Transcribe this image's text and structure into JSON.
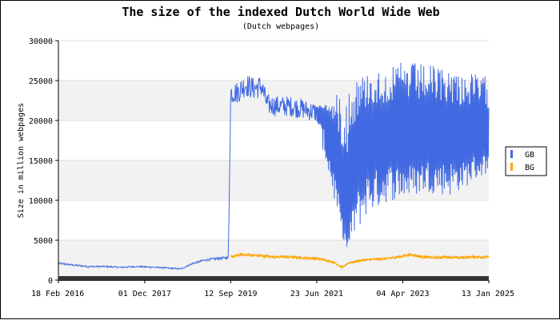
{
  "chart_data": {
    "type": "line",
    "title": "The size of the indexed Dutch World Wide Web",
    "subtitle": "(Dutch webpages)",
    "xlabel": "",
    "ylabel": "Size in million webpages",
    "ylim": [
      0,
      30000
    ],
    "yticks": [
      "0",
      "5000",
      "10000",
      "15000",
      "20000",
      "25000",
      "30000"
    ],
    "xlim": [
      "2016-02-18",
      "2025-01-13"
    ],
    "xticks": [
      {
        "label": "18 Feb 2016",
        "date": "2016-02-18"
      },
      {
        "label": "01 Dec 2017",
        "date": "2017-12-01"
      },
      {
        "label": "12 Sep 2019",
        "date": "2019-09-12"
      },
      {
        "label": "23 Jun 2021",
        "date": "2021-06-23"
      },
      {
        "label": "04 Apr 2023",
        "date": "2023-04-04"
      },
      {
        "label": "13 Jan 2025",
        "date": "2025-01-13"
      }
    ],
    "grid": true,
    "legend_position": "right",
    "series": [
      {
        "name": "GB",
        "color": "#4169E1",
        "points": [
          [
            "2016-02-18",
            2100
          ],
          [
            "2016-06-01",
            1900
          ],
          [
            "2016-10-01",
            1700
          ],
          [
            "2017-02-01",
            1700
          ],
          [
            "2017-06-01",
            1600
          ],
          [
            "2017-10-01",
            1700
          ],
          [
            "2017-12-01",
            1650
          ],
          [
            "2018-03-01",
            1600
          ],
          [
            "2018-06-01",
            1500
          ],
          [
            "2018-09-01",
            1400
          ],
          [
            "2018-12-01",
            2100
          ],
          [
            "2019-03-01",
            2500
          ],
          [
            "2019-06-01",
            2700
          ],
          [
            "2019-08-25",
            2800
          ],
          [
            "2019-09-12",
            23500
          ],
          [
            "2019-11-01",
            23500
          ],
          [
            "2020-01-01",
            24500
          ],
          [
            "2020-03-01",
            24000
          ],
          [
            "2020-05-01",
            24300
          ],
          [
            "2020-06-15",
            22000
          ],
          [
            "2020-09-01",
            21800
          ],
          [
            "2020-12-01",
            21800
          ],
          [
            "2021-03-01",
            21500
          ],
          [
            "2021-05-01",
            21200
          ],
          [
            "2021-06-23",
            21000
          ],
          [
            "2021-09-01",
            21000
          ],
          [
            "2021-11-01",
            17000
          ],
          [
            "2022-01-01",
            9000
          ],
          [
            "2022-02-15",
            6000
          ],
          [
            "2022-04-01",
            14000
          ],
          [
            "2022-06-01",
            16000
          ],
          [
            "2022-08-01",
            18000
          ],
          [
            "2022-10-01",
            17000
          ],
          [
            "2022-12-01",
            18000
          ],
          [
            "2023-02-01",
            17500
          ],
          [
            "2023-04-04",
            18000
          ],
          [
            "2023-07-01",
            17000
          ],
          [
            "2023-10-01",
            18000
          ],
          [
            "2024-01-01",
            17500
          ],
          [
            "2024-04-01",
            18000
          ],
          [
            "2024-07-01",
            17000
          ],
          [
            "2024-10-01",
            18000
          ],
          [
            "2025-01-13",
            17500
          ]
        ],
        "band_upper": [
          [
            "2021-06-23",
            22000
          ],
          [
            "2021-10-01",
            22000
          ],
          [
            "2022-02-01",
            25000
          ],
          [
            "2022-07-01",
            26000
          ],
          [
            "2023-01-01",
            26500
          ],
          [
            "2023-04-04",
            27500
          ],
          [
            "2023-10-01",
            27000
          ],
          [
            "2024-04-01",
            26500
          ],
          [
            "2025-01-13",
            25500
          ]
        ],
        "band_lower": [
          [
            "2021-06-23",
            20000
          ],
          [
            "2021-10-01",
            12000
          ],
          [
            "2022-02-01",
            3500
          ],
          [
            "2022-07-01",
            8000
          ],
          [
            "2023-01-01",
            10000
          ],
          [
            "2023-04-04",
            10000
          ],
          [
            "2023-10-01",
            11000
          ],
          [
            "2024-04-01",
            10500
          ],
          [
            "2025-01-13",
            13500
          ]
        ]
      },
      {
        "name": "BG",
        "color": "#FFA500",
        "points": [
          [
            "2019-09-12",
            2900
          ],
          [
            "2019-12-01",
            3200
          ],
          [
            "2020-03-01",
            3100
          ],
          [
            "2020-06-01",
            3000
          ],
          [
            "2020-09-01",
            2900
          ],
          [
            "2020-12-01",
            2900
          ],
          [
            "2021-03-01",
            2800
          ],
          [
            "2021-06-23",
            2700
          ],
          [
            "2021-09-01",
            2500
          ],
          [
            "2021-11-01",
            2200
          ],
          [
            "2022-01-01",
            1600
          ],
          [
            "2022-03-01",
            2200
          ],
          [
            "2022-06-01",
            2500
          ],
          [
            "2022-09-01",
            2600
          ],
          [
            "2022-12-01",
            2700
          ],
          [
            "2023-03-01",
            2900
          ],
          [
            "2023-06-01",
            3200
          ],
          [
            "2023-09-01",
            2900
          ],
          [
            "2023-12-01",
            2800
          ],
          [
            "2024-03-01",
            2900
          ],
          [
            "2024-06-01",
            2800
          ],
          [
            "2024-09-01",
            2900
          ],
          [
            "2025-01-13",
            2900
          ]
        ]
      }
    ]
  }
}
